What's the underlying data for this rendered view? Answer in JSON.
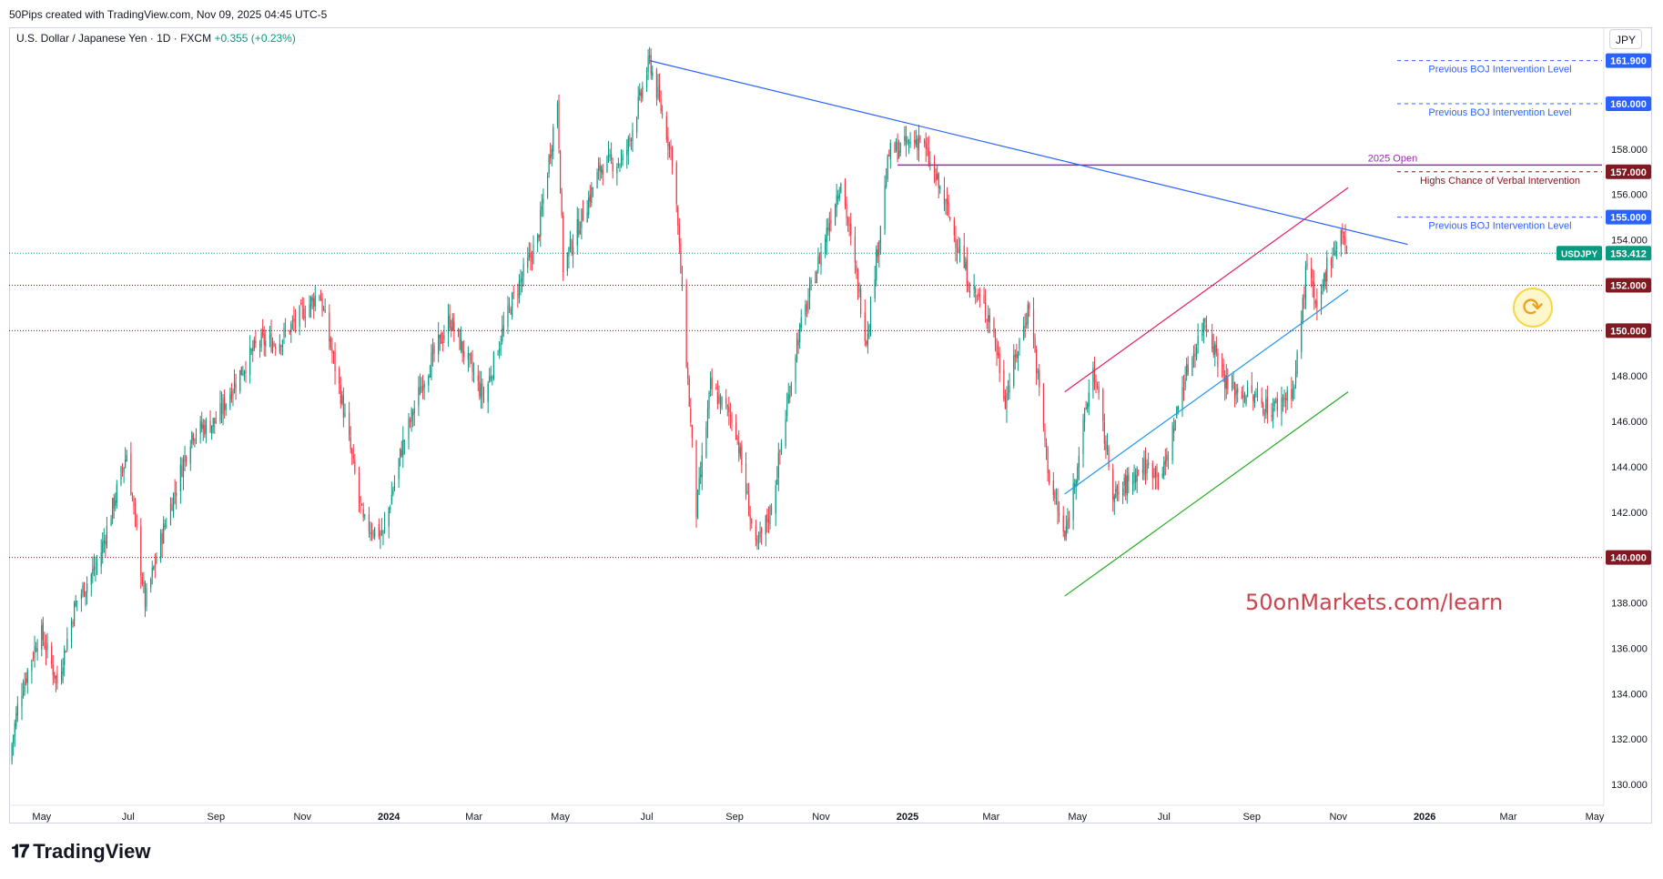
{
  "header": {
    "credit": "50Pips created with TradingView.com, Nov 09, 2025 04:45 UTC-5",
    "symbol_desc": "U.S. Dollar / Japanese Yen · 1D · FXCM",
    "change": "+0.355 (+0.23%)",
    "currency": "JPY"
  },
  "footer": {
    "brand": "TradingView",
    "watermark": "50onMarkets.com/learn"
  },
  "colors": {
    "up": "#089981",
    "down": "#f23645",
    "blue_line": "#2962ff",
    "purple": "#9c27b0",
    "red_level": "#801922",
    "blue_label": "#2962ff",
    "green_line": "#22ab22",
    "pink_line": "#e91e63"
  },
  "icons": {
    "reload": "refresh-icon",
    "logo": "tradingview-logo-icon"
  },
  "chart_data": {
    "type": "candlestick",
    "title": "",
    "symbol": "USDJPY",
    "last_price": 153.412,
    "ylim": [
      129,
      163
    ],
    "y_ticks": [
      "130.000",
      "132.000",
      "134.000",
      "136.000",
      "138.000",
      "140.000",
      "142.000",
      "144.000",
      "146.000",
      "148.000",
      "150.000",
      "152.000",
      "154.000",
      "155.000",
      "156.000",
      "157.000",
      "158.000",
      "160.000",
      "161.900"
    ],
    "x_ticks": [
      {
        "label": "May",
        "date": "2023-05-01"
      },
      {
        "label": "Jul",
        "date": "2023-07-01"
      },
      {
        "label": "Sep",
        "date": "2023-09-01"
      },
      {
        "label": "Nov",
        "date": "2023-11-01"
      },
      {
        "label": "2024",
        "date": "2024-01-01"
      },
      {
        "label": "Mar",
        "date": "2024-03-01"
      },
      {
        "label": "May",
        "date": "2024-05-01"
      },
      {
        "label": "Jul",
        "date": "2024-07-01"
      },
      {
        "label": "Sep",
        "date": "2024-09-01"
      },
      {
        "label": "Nov",
        "date": "2024-11-01"
      },
      {
        "label": "2025",
        "date": "2025-01-01"
      },
      {
        "label": "Mar",
        "date": "2025-03-01"
      },
      {
        "label": "May",
        "date": "2025-05-01"
      },
      {
        "label": "Jul",
        "date": "2025-07-01"
      },
      {
        "label": "Sep",
        "date": "2025-09-01"
      },
      {
        "label": "Nov",
        "date": "2025-11-01"
      },
      {
        "label": "2026",
        "date": "2026-01-01"
      },
      {
        "label": "Mar",
        "date": "2026-03-01"
      },
      {
        "label": "May",
        "date": "2026-05-01"
      }
    ],
    "price_path": [
      [
        "2023-04-08",
        131.0
      ],
      [
        "2023-04-15",
        133.8
      ],
      [
        "2023-04-30",
        136.8
      ],
      [
        "2023-05-12",
        134.5
      ],
      [
        "2023-05-25",
        138.0
      ],
      [
        "2023-06-10",
        139.8
      ],
      [
        "2023-06-30",
        144.6
      ],
      [
        "2023-07-13",
        138.0
      ],
      [
        "2023-07-25",
        141.0
      ],
      [
        "2023-08-15",
        145.5
      ],
      [
        "2023-09-01",
        146.0
      ],
      [
        "2023-09-15",
        147.8
      ],
      [
        "2023-10-01",
        149.5
      ],
      [
        "2023-10-15",
        149.5
      ],
      [
        "2023-11-01",
        150.8
      ],
      [
        "2023-11-13",
        151.7
      ],
      [
        "2023-11-28",
        147.2
      ],
      [
        "2023-12-14",
        141.5
      ],
      [
        "2023-12-28",
        141.0
      ],
      [
        "2024-01-10",
        144.8
      ],
      [
        "2024-01-25",
        147.8
      ],
      [
        "2024-02-13",
        150.5
      ],
      [
        "2024-03-08",
        147.0
      ],
      [
        "2024-03-18",
        149.3
      ],
      [
        "2024-03-28",
        151.3
      ],
      [
        "2024-04-15",
        154.0
      ],
      [
        "2024-04-29",
        160.2
      ],
      [
        "2024-05-03",
        152.8
      ],
      [
        "2024-05-30",
        157.3
      ],
      [
        "2024-06-15",
        157.5
      ],
      [
        "2024-07-03",
        161.9
      ],
      [
        "2024-07-20",
        157.4
      ],
      [
        "2024-08-05",
        142.0
      ],
      [
        "2024-08-15",
        147.5
      ],
      [
        "2024-09-01",
        146.0
      ],
      [
        "2024-09-16",
        140.3
      ],
      [
        "2024-09-27",
        142.2
      ],
      [
        "2024-10-15",
        149.5
      ],
      [
        "2024-11-15",
        156.7
      ],
      [
        "2024-12-03",
        149.6
      ],
      [
        "2024-12-19",
        157.8
      ],
      [
        "2025-01-10",
        158.5
      ],
      [
        "2025-01-28",
        155.5
      ],
      [
        "2025-02-14",
        152.0
      ],
      [
        "2025-03-01",
        150.5
      ],
      [
        "2025-03-11",
        147.0
      ],
      [
        "2025-03-28",
        151.2
      ],
      [
        "2025-04-11",
        143.5
      ],
      [
        "2025-04-22",
        140.8
      ],
      [
        "2025-05-12",
        148.4
      ],
      [
        "2025-05-27",
        142.6
      ],
      [
        "2025-06-15",
        144.0
      ],
      [
        "2025-07-01",
        143.8
      ],
      [
        "2025-07-15",
        147.8
      ],
      [
        "2025-07-30",
        150.5
      ],
      [
        "2025-08-15",
        147.5
      ],
      [
        "2025-09-01",
        147.1
      ],
      [
        "2025-09-15",
        146.5
      ],
      [
        "2025-10-01",
        147.5
      ],
      [
        "2025-10-05",
        150.0
      ],
      [
        "2025-10-10",
        153.1
      ],
      [
        "2025-10-17",
        150.6
      ],
      [
        "2025-10-24",
        152.9
      ],
      [
        "2025-11-04",
        154.4
      ],
      [
        "2025-11-07",
        153.4
      ]
    ],
    "horizontal_levels": [
      {
        "price": 161.9,
        "label": "161.900",
        "style": "dashed-blue",
        "text": "Previous BOJ Intervention Level"
      },
      {
        "price": 160.0,
        "label": "160.000",
        "style": "dashed-blue",
        "text": "Previous BOJ Intervention Level"
      },
      {
        "price": 157.0,
        "label": "157.000",
        "style": "dashed-red",
        "text": "Highs Chance of Verbal Intervention"
      },
      {
        "price": 155.0,
        "label": "155.000",
        "style": "dashed-blue",
        "text": "Previous BOJ Intervention Level"
      },
      {
        "price": 152.0,
        "label": "152.000",
        "style": "dotted-red",
        "text": ""
      },
      {
        "price": 150.0,
        "label": "150.000",
        "style": "dotted-red",
        "text": ""
      },
      {
        "price": 140.0,
        "label": "140.000",
        "style": "dotted-red",
        "text": ""
      }
    ],
    "open_2025": {
      "price": 157.3,
      "from": "2024-12-25",
      "to": "2026-06-01",
      "text": "2025 Open"
    },
    "trendlines": [
      {
        "name": "downtrend",
        "color": "blue",
        "from": [
          "2024-07-03",
          161.9
        ],
        "to": [
          "2025-12-20",
          153.8
        ]
      },
      {
        "name": "channel-top",
        "color": "pink",
        "from": [
          "2025-04-22",
          147.3
        ],
        "to": [
          "2025-11-08",
          156.3
        ]
      },
      {
        "name": "channel-mid",
        "color": "lightblue",
        "from": [
          "2025-04-22",
          142.8
        ],
        "to": [
          "2025-11-08",
          151.8
        ]
      },
      {
        "name": "channel-bottom",
        "color": "green",
        "from": [
          "2025-04-22",
          138.3
        ],
        "to": [
          "2025-11-08",
          147.3
        ]
      }
    ],
    "price_tags": [
      {
        "label": "USDJPY",
        "value": "153.412"
      }
    ]
  }
}
